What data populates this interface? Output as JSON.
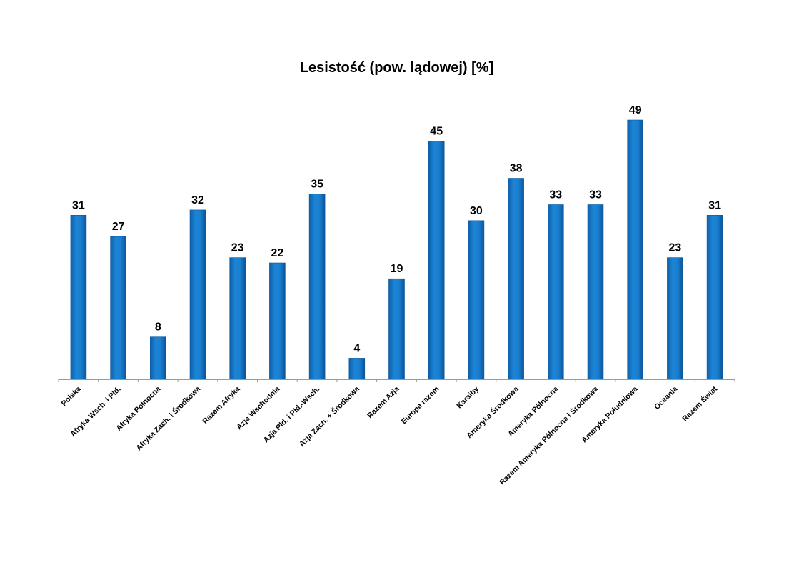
{
  "chart_data": {
    "type": "bar",
    "title": "Lesistość (pow. lądowej) [%]",
    "xlabel": "",
    "ylabel": "",
    "ylim": [
      0,
      49
    ],
    "grid": false,
    "legend": false,
    "bar_color": "#1577C9",
    "bar_color_dark": "#0D5A9E",
    "categories": [
      "Polska",
      "Afryka Wsch. i Płd.",
      "Afryka Północna",
      "Afryka Zach. i Środkowa",
      "Razem Afryka",
      "Azja Wschodnia",
      "Azja Płd. i Płd.-Wsch.",
      "Azja Zach. + Środkowa",
      "Razem Azja",
      "Europa razem",
      "Karaiby",
      "Ameryka Środkowa",
      "Ameryka Północna",
      "Razem Ameryka Północna i Środkowa",
      "Ameryka Południowa",
      "Oceania",
      "Razem Świat"
    ],
    "values": [
      31,
      27,
      8,
      32,
      23,
      22,
      35,
      4,
      19,
      45,
      30,
      38,
      33,
      33,
      49,
      23,
      31
    ]
  }
}
